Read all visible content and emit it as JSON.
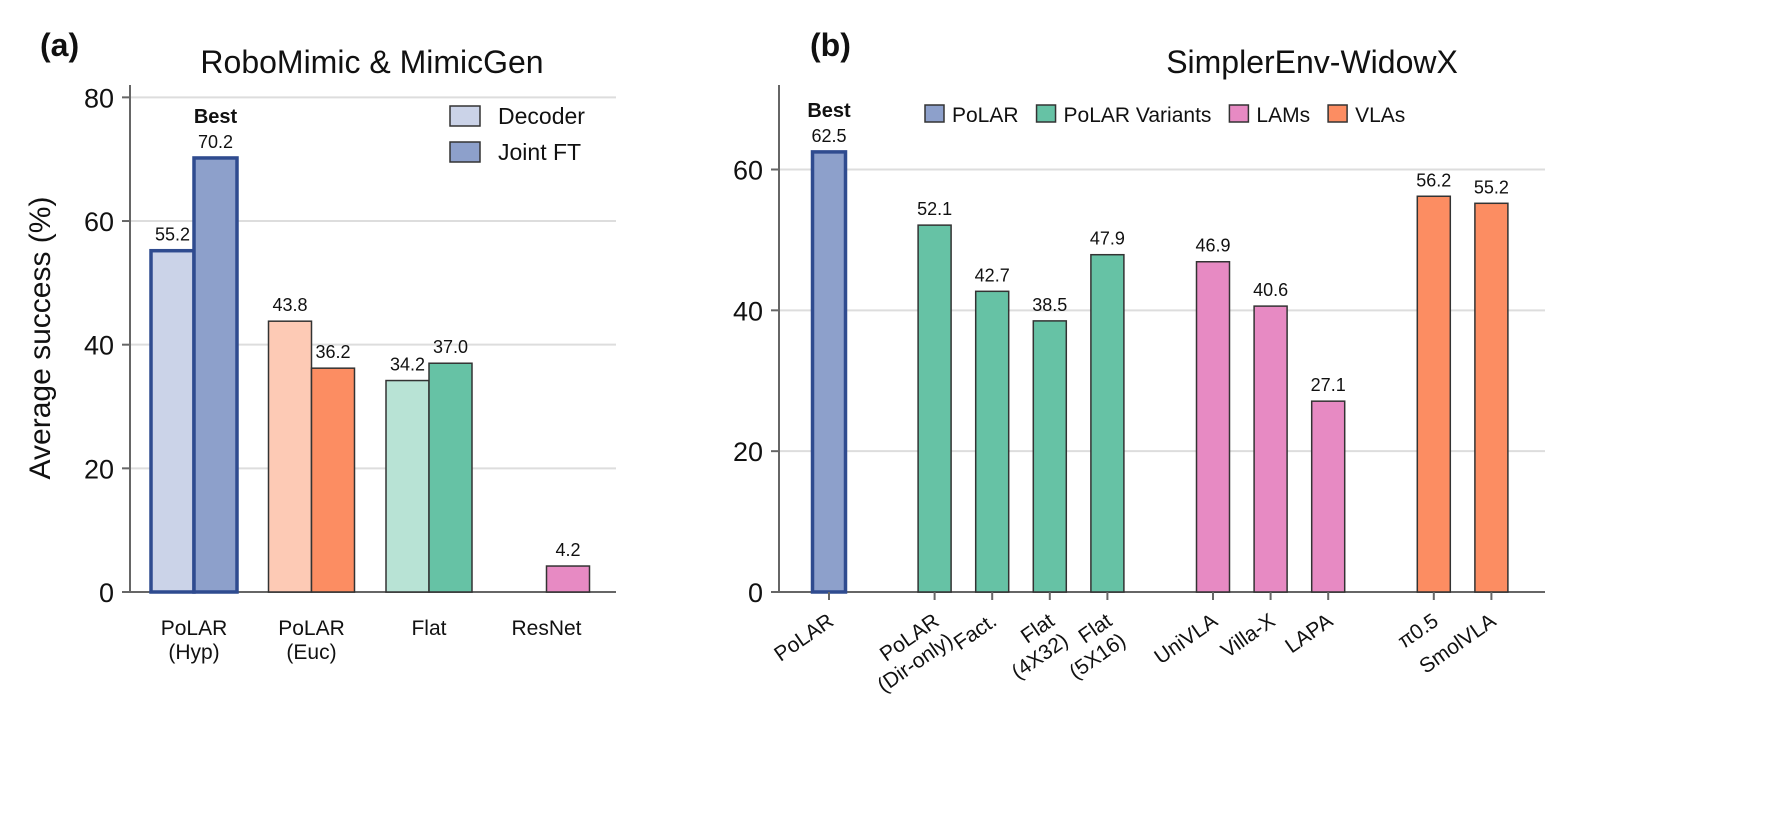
{
  "chart_data": [
    {
      "type": "grouped_bar",
      "panel_label": "(a)",
      "title": "RoboMimic & MimicGen",
      "y_label": "Average success (%)",
      "categories": [
        "PoLAR\n(Hyp)",
        "PoLAR\n(Euc)",
        "Flat",
        "ResNet"
      ],
      "series": [
        {
          "name": "Decoder",
          "color": "#cbd3e8",
          "colors": [
            "#cbd3e8",
            "#fdcab5",
            "#b8e3d5",
            "#f5c8e3"
          ],
          "values": [
            55.2,
            43.8,
            34.2,
            null
          ]
        },
        {
          "name": "Joint FT",
          "color": "#8da0cb",
          "colors": [
            "#8da0cb",
            "#fc8d62",
            "#66c2a5",
            "#e78ac3"
          ],
          "values": [
            70.2,
            36.2,
            37.0,
            4.2
          ],
          "value_labels": [
            "70.2",
            "36.2",
            "37.0",
            "4.2"
          ]
        }
      ],
      "annotation": "Best",
      "highlight_color": "#2f4b8f",
      "ylim": [
        0,
        82
      ],
      "yticks": [
        0,
        20,
        40,
        60,
        80
      ],
      "grid": true,
      "legend": "upper right"
    },
    {
      "type": "bar",
      "panel_label": "(b)",
      "title": "SimplerEnv-WidowX",
      "categories": [
        "PoLAR",
        "PoLAR\n(Dir-only)",
        "Fact.",
        "Flat\n(4X32)",
        "Flat\n(5X16)",
        "UniVLA",
        "Villa-X",
        "LAPA",
        "π0.5",
        "SmolVLA"
      ],
      "series": [
        {
          "name": "PoLAR",
          "color": "#8da0cb",
          "values": [
            62.5,
            null,
            null,
            null,
            null,
            null,
            null,
            null,
            null,
            null
          ]
        },
        {
          "name": "PoLAR Variants",
          "color": "#66c2a5",
          "values": [
            null,
            52.1,
            42.7,
            38.5,
            47.9,
            null,
            null,
            null,
            null,
            null
          ]
        },
        {
          "name": "LAMs",
          "color": "#e78ac3",
          "values": [
            null,
            null,
            null,
            null,
            null,
            46.9,
            40.6,
            27.1,
            null,
            null
          ]
        },
        {
          "name": "VLAs",
          "color": "#fc8d62",
          "values": [
            null,
            null,
            null,
            null,
            null,
            null,
            null,
            null,
            56.2,
            55.2
          ]
        }
      ],
      "annotation": "Best",
      "highlight_color": "#2f4b8f",
      "ylim": [
        0,
        72
      ],
      "yticks": [
        0,
        20,
        40,
        60
      ],
      "grid": true,
      "legend": "upper center"
    }
  ]
}
